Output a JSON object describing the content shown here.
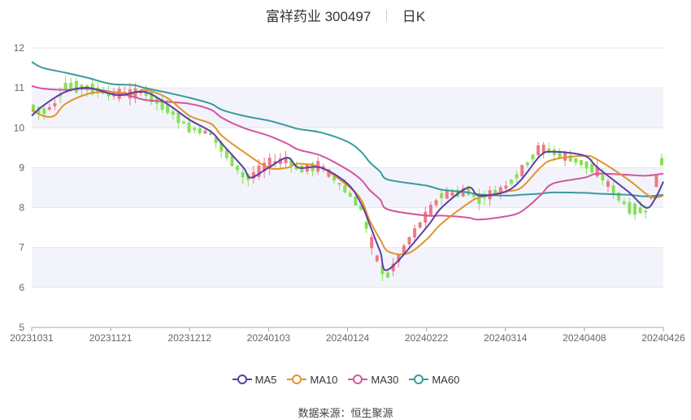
{
  "chart_data": {
    "type": "candlestick",
    "title": "富祥药业 300497",
    "period": "日K",
    "ylim": [
      5,
      12
    ],
    "y_ticks": [
      "5",
      "6",
      "7",
      "8",
      "9",
      "10",
      "11",
      "12"
    ],
    "x_ticks": [
      "20231031",
      "20231121",
      "20231212",
      "20240103",
      "20240124",
      "20240222",
      "20240314",
      "20240408",
      "20240426"
    ],
    "colors": {
      "up": "#f07886",
      "down": "#86e05a",
      "MA5": "#5b3fa0",
      "MA10": "#e3922f",
      "MA30": "#d4559e",
      "MA60": "#3a9a9a",
      "band": "#f3f4fb",
      "grid": "#e6e6e6",
      "axis": "#aaaaaa"
    },
    "ma_points": {
      "MA5": [
        [
          "20231031",
          10.3
        ],
        [
          "20231103",
          10.55
        ],
        [
          "20231109",
          10.9
        ],
        [
          "20231115",
          11.0
        ],
        [
          "20231121",
          10.85
        ],
        [
          "20231124",
          10.82
        ],
        [
          "20231130",
          10.9
        ],
        [
          "20231206",
          10.6
        ],
        [
          "20231212",
          10.2
        ],
        [
          "20231218",
          9.9
        ],
        [
          "20231221",
          9.6
        ],
        [
          "20231227",
          9.0
        ],
        [
          "20231229",
          8.75
        ],
        [
          "20240103",
          9.0
        ],
        [
          "20240108",
          9.25
        ],
        [
          "20240111",
          9.0
        ],
        [
          "20240117",
          9.0
        ],
        [
          "20240124",
          8.6
        ],
        [
          "20240129",
          8.1
        ],
        [
          "20240201",
          7.6
        ],
        [
          "20240205",
          6.9
        ],
        [
          "20240208",
          6.45
        ],
        [
          "20240222",
          7.5
        ],
        [
          "20240226",
          8.0
        ],
        [
          "20240304",
          8.5
        ],
        [
          "20240307",
          8.3
        ],
        [
          "20240314",
          8.4
        ],
        [
          "20240319",
          8.7
        ],
        [
          "20240325",
          9.3
        ],
        [
          "20240329",
          9.4
        ],
        [
          "20240408",
          9.3
        ],
        [
          "20240411",
          9.0
        ],
        [
          "20240418",
          8.4
        ],
        [
          "20240422",
          8.0
        ],
        [
          "20240424",
          8.2
        ],
        [
          "20240426",
          8.65
        ]
      ],
      "MA10": [
        [
          "20231031",
          10.45
        ],
        [
          "20231103",
          10.3
        ],
        [
          "20231106",
          10.3
        ],
        [
          "20231109",
          10.6
        ],
        [
          "20231115",
          10.85
        ],
        [
          "20231121",
          10.9
        ],
        [
          "20231127",
          10.85
        ],
        [
          "20231130",
          10.95
        ],
        [
          "20231206",
          10.75
        ],
        [
          "20231212",
          10.3
        ],
        [
          "20231218",
          10.1
        ],
        [
          "20231221",
          9.8
        ],
        [
          "20231227",
          9.4
        ],
        [
          "20240103",
          9.0
        ],
        [
          "20240108",
          9.0
        ],
        [
          "20240111",
          9.1
        ],
        [
          "20240117",
          9.0
        ],
        [
          "20240124",
          8.55
        ],
        [
          "20240129",
          8.2
        ],
        [
          "20240201",
          7.7
        ],
        [
          "20240205",
          7.2
        ],
        [
          "20240208",
          6.9
        ],
        [
          "20240215",
          6.85
        ],
        [
          "20240222",
          7.2
        ],
        [
          "20240226",
          7.6
        ],
        [
          "20240304",
          8.1
        ],
        [
          "20240307",
          8.25
        ],
        [
          "20240314",
          8.4
        ],
        [
          "20240319",
          8.5
        ],
        [
          "20240325",
          9.0
        ],
        [
          "20240329",
          9.2
        ],
        [
          "20240408",
          9.3
        ],
        [
          "20240411",
          9.2
        ],
        [
          "20240418",
          8.7
        ],
        [
          "20240422",
          8.35
        ],
        [
          "20240424",
          8.25
        ],
        [
          "20240426",
          8.3
        ]
      ],
      "MA30": [
        [
          "20231031",
          11.05
        ],
        [
          "20231103",
          10.98
        ],
        [
          "20231109",
          10.95
        ],
        [
          "20231115",
          10.98
        ],
        [
          "20231121",
          10.9
        ],
        [
          "20231127",
          10.78
        ],
        [
          "20231130",
          10.7
        ],
        [
          "20231206",
          10.65
        ],
        [
          "20231212",
          10.6
        ],
        [
          "20231218",
          10.45
        ],
        [
          "20231221",
          10.25
        ],
        [
          "20231227",
          10.0
        ],
        [
          "20240103",
          9.8
        ],
        [
          "20240108",
          9.6
        ],
        [
          "20240111",
          9.45
        ],
        [
          "20240117",
          9.3
        ],
        [
          "20240124",
          8.95
        ],
        [
          "20240129",
          8.7
        ],
        [
          "20240201",
          8.45
        ],
        [
          "20240205",
          8.2
        ],
        [
          "20240208",
          7.95
        ],
        [
          "20240222",
          7.8
        ],
        [
          "20240226",
          7.8
        ],
        [
          "20240304",
          7.75
        ],
        [
          "20240307",
          7.7
        ],
        [
          "20240314",
          7.78
        ],
        [
          "20240319",
          7.9
        ],
        [
          "20240325",
          8.3
        ],
        [
          "20240329",
          8.6
        ],
        [
          "20240408",
          8.75
        ],
        [
          "20240411",
          8.85
        ],
        [
          "20240418",
          8.82
        ],
        [
          "20240422",
          8.8
        ],
        [
          "20240426",
          8.85
        ]
      ],
      "MA60": [
        [
          "20231031",
          11.65
        ],
        [
          "20231103",
          11.5
        ],
        [
          "20231109",
          11.38
        ],
        [
          "20231115",
          11.25
        ],
        [
          "20231121",
          11.1
        ],
        [
          "20231127",
          11.07
        ],
        [
          "20231130",
          11.0
        ],
        [
          "20231206",
          10.88
        ],
        [
          "20231212",
          10.75
        ],
        [
          "20231218",
          10.6
        ],
        [
          "20231221",
          10.45
        ],
        [
          "20231227",
          10.3
        ],
        [
          "20240103",
          10.18
        ],
        [
          "20240108",
          10.05
        ],
        [
          "20240111",
          9.97
        ],
        [
          "20240117",
          9.88
        ],
        [
          "20240124",
          9.65
        ],
        [
          "20240129",
          9.4
        ],
        [
          "20240201",
          9.15
        ],
        [
          "20240205",
          8.9
        ],
        [
          "20240208",
          8.7
        ],
        [
          "20240222",
          8.55
        ],
        [
          "20240226",
          8.45
        ],
        [
          "20240304",
          8.38
        ],
        [
          "20240307",
          8.33
        ],
        [
          "20240314",
          8.3
        ],
        [
          "20240319",
          8.32
        ],
        [
          "20240325",
          8.35
        ],
        [
          "20240329",
          8.38
        ],
        [
          "20240408",
          8.37
        ],
        [
          "20240411",
          8.35
        ],
        [
          "20240418",
          8.32
        ],
        [
          "20240422",
          8.28
        ],
        [
          "20240426",
          8.32
        ]
      ]
    },
    "candle_anchors": [
      [
        "20231031",
        10.5
      ],
      [
        "20231103",
        10.4
      ],
      [
        "20231106",
        10.55
      ],
      [
        "20231109",
        11.05
      ],
      [
        "20231115",
        11.0
      ],
      [
        "20231121",
        10.85
      ],
      [
        "20231127",
        10.85
      ],
      [
        "20231130",
        10.9
      ],
      [
        "20231206",
        10.5
      ],
      [
        "20231212",
        10.0
      ],
      [
        "20231218",
        9.85
      ],
      [
        "20231221",
        9.5
      ],
      [
        "20231227",
        8.8
      ],
      [
        "20231229",
        8.75
      ],
      [
        "20240103",
        9.1
      ],
      [
        "20240108",
        9.2
      ],
      [
        "20240111",
        8.95
      ],
      [
        "20240117",
        9.05
      ],
      [
        "20240124",
        8.4
      ],
      [
        "20240129",
        8.0
      ],
      [
        "20240201",
        7.3
      ],
      [
        "20240205",
        6.5
      ],
      [
        "20240208",
        6.3
      ],
      [
        "20240215",
        7.1
      ],
      [
        "20240222",
        7.8
      ],
      [
        "20240226",
        8.3
      ],
      [
        "20240304",
        8.4
      ],
      [
        "20240307",
        8.2
      ],
      [
        "20240314",
        8.5
      ],
      [
        "20240319",
        8.9
      ],
      [
        "20240325",
        9.5
      ],
      [
        "20240329",
        9.4
      ],
      [
        "20240408",
        9.1
      ],
      [
        "20240411",
        8.9
      ],
      [
        "20240418",
        8.0
      ],
      [
        "20240422",
        7.9
      ],
      [
        "20240424",
        8.5
      ],
      [
        "20240426",
        9.3
      ]
    ],
    "series": [
      {
        "name": "MA5"
      },
      {
        "name": "MA10"
      },
      {
        "name": "MA30"
      },
      {
        "name": "MA60"
      }
    ],
    "legend_position": "bottom",
    "grid": true
  },
  "source_text": "数据来源：恒生聚源"
}
